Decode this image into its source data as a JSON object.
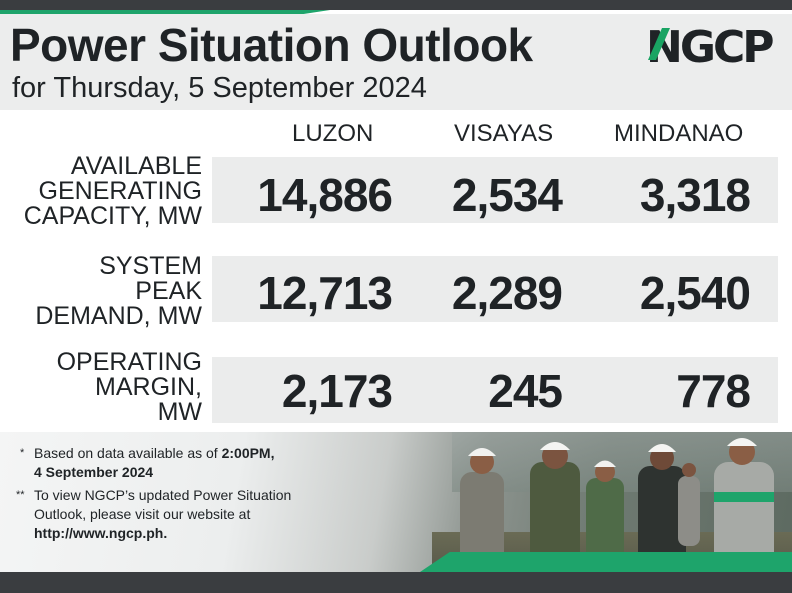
{
  "header": {
    "title": "Power Situation Outlook",
    "subtitle": "for Thursday, 5 September 2024",
    "logo_text": "NGCP"
  },
  "columns": [
    "LUZON",
    "VISAYAS",
    "MINDANAO"
  ],
  "rows": [
    {
      "label_lines": [
        "AVAILABLE",
        "GENERATING",
        "CAPACITY, MW"
      ],
      "values": [
        "14,886",
        "2,534",
        "3,318"
      ]
    },
    {
      "label_lines": [
        "SYSTEM",
        "PEAK",
        "DEMAND, MW"
      ],
      "values": [
        "12,713",
        "2,289",
        "2,540"
      ]
    },
    {
      "label_lines": [
        "OPERATING",
        "MARGIN,",
        "MW"
      ],
      "values": [
        "2,173",
        "245",
        "778"
      ]
    }
  ],
  "notes": {
    "note1_marker": "*",
    "note1_text": "Based on data available as of ",
    "note1_bold_time": "2:00PM,",
    "note1_bold_date": "4 September 2024",
    "note2_marker": "**",
    "note2_line1": "To view NGCP’s updated Power Situation",
    "note2_line2": "Outlook, please visit our website at",
    "note2_url": "http://www.ngcp.ph."
  },
  "colors": {
    "accent": "#1ea46b",
    "dark_bar": "#3a3d40",
    "band": "#ebecec"
  }
}
